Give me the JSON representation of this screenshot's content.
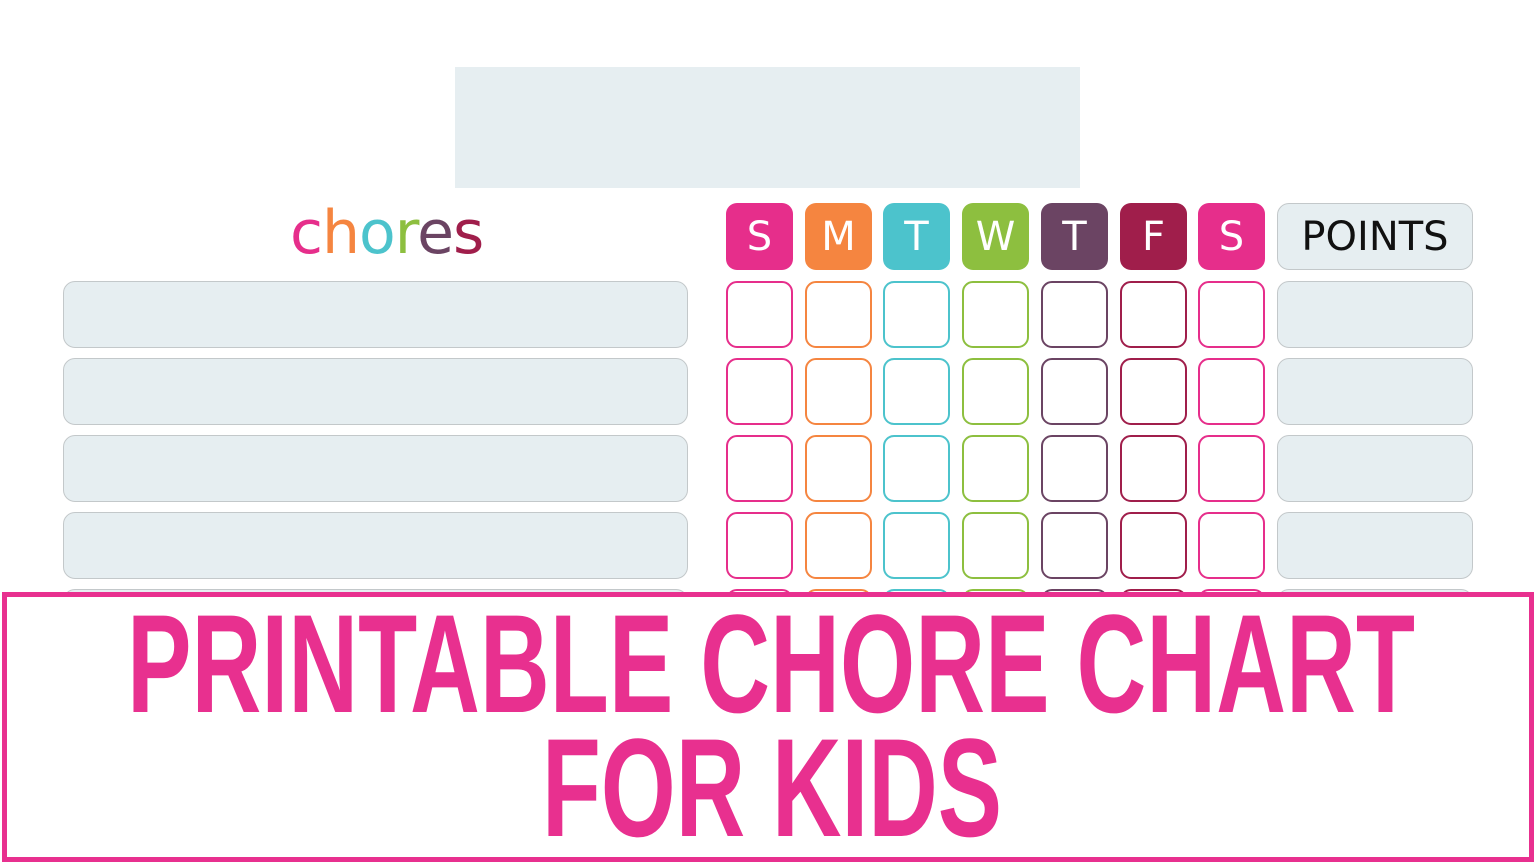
{
  "header": {
    "title_letters": [
      {
        "ch": "c",
        "color": "#e62e8b"
      },
      {
        "ch": "h",
        "color": "#f58540"
      },
      {
        "ch": "o",
        "color": "#4cc3cc"
      },
      {
        "ch": "r",
        "color": "#8dbf3f"
      },
      {
        "ch": "e",
        "color": "#6b4463"
      },
      {
        "ch": "s",
        "color": "#a01e4b"
      }
    ],
    "title": "chores",
    "points_label": "POINTS"
  },
  "days": [
    {
      "label": "S",
      "color": "#e62e8b"
    },
    {
      "label": "M",
      "color": "#f58540"
    },
    {
      "label": "T",
      "color": "#4cc3cc"
    },
    {
      "label": "W",
      "color": "#8dbf3f"
    },
    {
      "label": "T",
      "color": "#6b4463"
    },
    {
      "label": "F",
      "color": "#a01e4b"
    },
    {
      "label": "S",
      "color": "#e62e8b"
    }
  ],
  "banner": {
    "line1": "PRINTABLE CHORE CHART",
    "line2": "FOR KIDS",
    "color": "#e8308f"
  }
}
